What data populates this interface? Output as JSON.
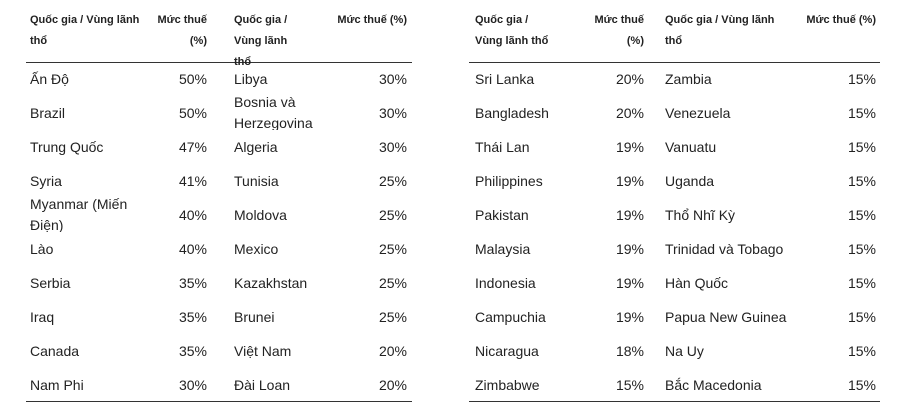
{
  "tables": [
    {
      "headers": [
        "Quốc gia / Vùng lãnh thổ",
        "Mức thuế (%)",
        "Quốc gia / Vùng lãnh thổ",
        "Mức thuế (%)"
      ],
      "rows": [
        [
          "Ấn Độ",
          "50%",
          "Libya",
          "30%"
        ],
        [
          "Brazil",
          "50%",
          "Bosnia và Herzegovina",
          "30%"
        ],
        [
          "Trung Quốc",
          "47%",
          "Algeria",
          "30%"
        ],
        [
          "Syria",
          "41%",
          "Tunisia",
          "25%"
        ],
        [
          "Myanmar (Miến Điện)",
          "40%",
          "Moldova",
          "25%"
        ],
        [
          "Lào",
          "40%",
          "Mexico",
          "25%"
        ],
        [
          "Serbia",
          "35%",
          "Kazakhstan",
          "25%"
        ],
        [
          "Iraq",
          "35%",
          "Brunei",
          "25%"
        ],
        [
          "Canada",
          "35%",
          "Việt Nam",
          "20%"
        ],
        [
          "Nam Phi",
          "30%",
          "Đài Loan",
          "20%"
        ]
      ]
    },
    {
      "headers": [
        "Quốc gia / Vùng lãnh thổ",
        "Mức thuế (%)",
        "Quốc gia / Vùng lãnh thổ",
        "Mức thuế (%)"
      ],
      "rows": [
        [
          "Sri Lanka",
          "20%",
          "Zambia",
          "15%"
        ],
        [
          "Bangladesh",
          "20%",
          "Venezuela",
          "15%"
        ],
        [
          "Thái Lan",
          "19%",
          "Vanuatu",
          "15%"
        ],
        [
          "Philippines",
          "19%",
          "Uganda",
          "15%"
        ],
        [
          "Pakistan",
          "19%",
          "Thổ Nhĩ Kỳ",
          "15%"
        ],
        [
          "Malaysia",
          "19%",
          "Trinidad và Tobago",
          "15%"
        ],
        [
          "Indonesia",
          "19%",
          "Hàn Quốc",
          "15%"
        ],
        [
          "Campuchia",
          "19%",
          "Papua New Guinea",
          "15%"
        ],
        [
          "Nicaragua",
          "18%",
          "Na Uy",
          "15%"
        ],
        [
          "Zimbabwe",
          "15%",
          "Bắc Macedonia",
          "15%"
        ]
      ]
    }
  ]
}
